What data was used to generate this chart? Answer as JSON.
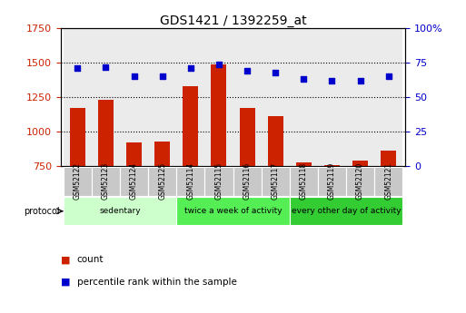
{
  "title": "GDS1421 / 1392259_at",
  "samples": [
    "GSM52122",
    "GSM52123",
    "GSM52124",
    "GSM52125",
    "GSM52114",
    "GSM52115",
    "GSM52116",
    "GSM52117",
    "GSM52118",
    "GSM52119",
    "GSM52120",
    "GSM52121"
  ],
  "counts": [
    1170,
    1230,
    920,
    930,
    1330,
    1490,
    1170,
    1110,
    775,
    760,
    790,
    860
  ],
  "percentiles": [
    71,
    72,
    65,
    65,
    71,
    74,
    69,
    68,
    63,
    62,
    62,
    65
  ],
  "ylim_left": [
    750,
    1750
  ],
  "ylim_right": [
    0,
    100
  ],
  "yticks_left": [
    750,
    1000,
    1250,
    1500,
    1750
  ],
  "yticks_right": [
    0,
    25,
    50,
    75,
    100
  ],
  "groups": [
    {
      "label": "sedentary",
      "start": 0,
      "end": 4,
      "color": "#ccffcc"
    },
    {
      "label": "twice a week of activity",
      "start": 4,
      "end": 8,
      "color": "#55ee55"
    },
    {
      "label": "every other day of activity",
      "start": 8,
      "end": 12,
      "color": "#33cc33"
    }
  ],
  "bar_color": "#cc2200",
  "dot_color": "#0000cc",
  "bar_baseline": 750,
  "left_axis_color": "#cc2200",
  "right_axis_color": "#0000cc",
  "bg_color": "#ffffff",
  "plot_bg_color": "#ffffff",
  "sample_bg_color": "#c8c8c8",
  "protocol_label": "protocol",
  "legend_count": "count",
  "legend_percentile": "percentile rank within the sample",
  "grid_yticks": [
    1000,
    1250,
    1500
  ]
}
